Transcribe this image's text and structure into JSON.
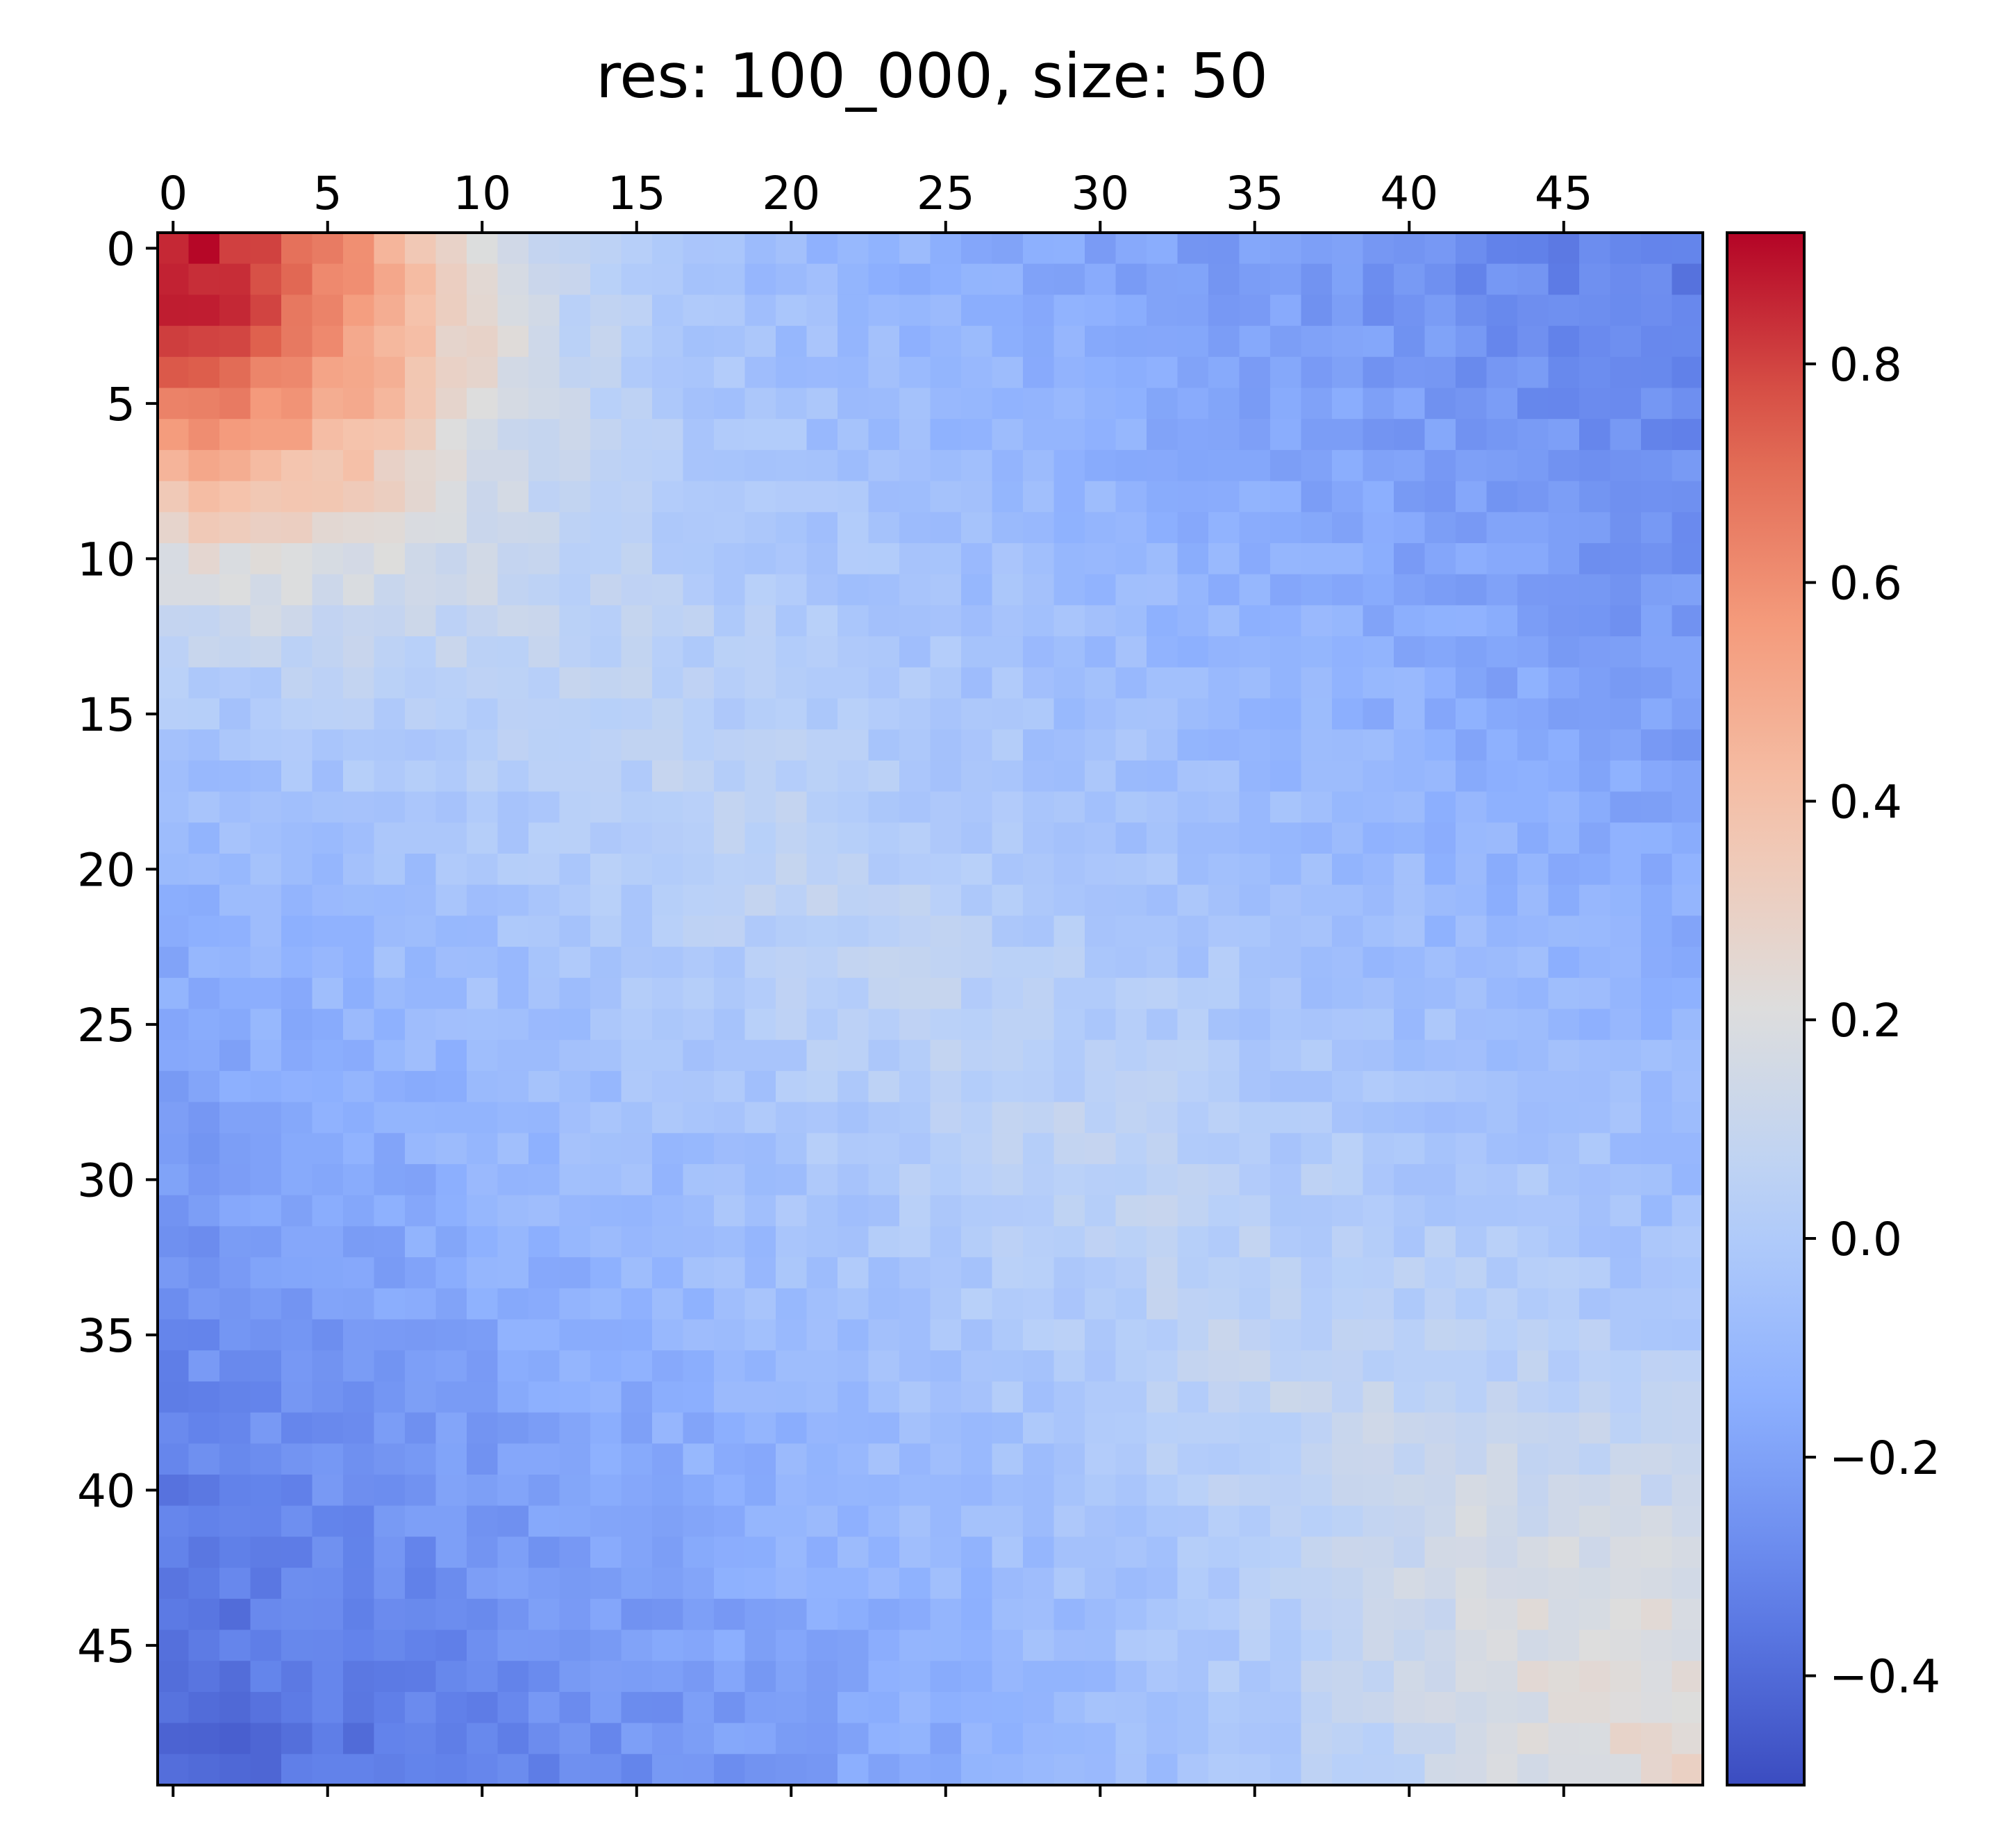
{
  "chart_data": {
    "type": "heatmap",
    "title": "res: 100_000, size: 50",
    "xlabel": "",
    "ylabel": "",
    "rows": 50,
    "cols": 50,
    "x_axis_position": "top",
    "x_ticks": [
      0,
      5,
      10,
      15,
      20,
      25,
      30,
      35,
      40,
      45
    ],
    "x_tick_labels": [
      "0",
      "5",
      "10",
      "15",
      "20",
      "25",
      "30",
      "35",
      "40",
      "45"
    ],
    "y_ticks": [
      0,
      5,
      10,
      15,
      20,
      25,
      30,
      35,
      40,
      45
    ],
    "y_tick_labels": [
      "0",
      "5",
      "10",
      "15",
      "20",
      "25",
      "30",
      "35",
      "40",
      "45"
    ],
    "colormap": "coolwarm",
    "colorbar": {
      "vmin": -0.5,
      "vmax": 0.92,
      "ticks": [
        -0.4,
        -0.2,
        0.0,
        0.2,
        0.4,
        0.6,
        0.8
      ],
      "tick_labels": [
        "−0.4",
        "−0.2",
        "0.0",
        "0.2",
        "0.4",
        "0.6",
        "0.8"
      ]
    },
    "grid": false,
    "description_of_values": "Correlation-like structure: strongly positive (~0.9) at cell (0,0), positive block in top-left ~8x8, near zero band along anti-diagonal, negative (~-0.4) in top-right and bottom-left corners, near zero/slightly positive (~0.2) in bottom-right corner.",
    "control_points": [
      {
        "row": 0,
        "col": 0,
        "value": 0.92
      },
      {
        "row": 0,
        "col": 1,
        "value": 0.75
      },
      {
        "row": 1,
        "col": 0,
        "value": 0.78
      },
      {
        "row": 4,
        "col": 4,
        "value": 0.55
      },
      {
        "row": 7,
        "col": 7,
        "value": 0.38
      },
      {
        "row": 10,
        "col": 10,
        "value": 0.2
      },
      {
        "row": 0,
        "col": 49,
        "value": -0.2
      },
      {
        "row": 4,
        "col": 47,
        "value": -0.38
      },
      {
        "row": 10,
        "col": 45,
        "value": -0.3
      },
      {
        "row": 49,
        "col": 0,
        "value": -0.45
      },
      {
        "row": 46,
        "col": 8,
        "value": -0.38
      },
      {
        "row": 49,
        "col": 49,
        "value": 0.15
      },
      {
        "row": 44,
        "col": 47,
        "value": 0.25
      },
      {
        "row": 25,
        "col": 25,
        "value": 0.05
      }
    ]
  }
}
